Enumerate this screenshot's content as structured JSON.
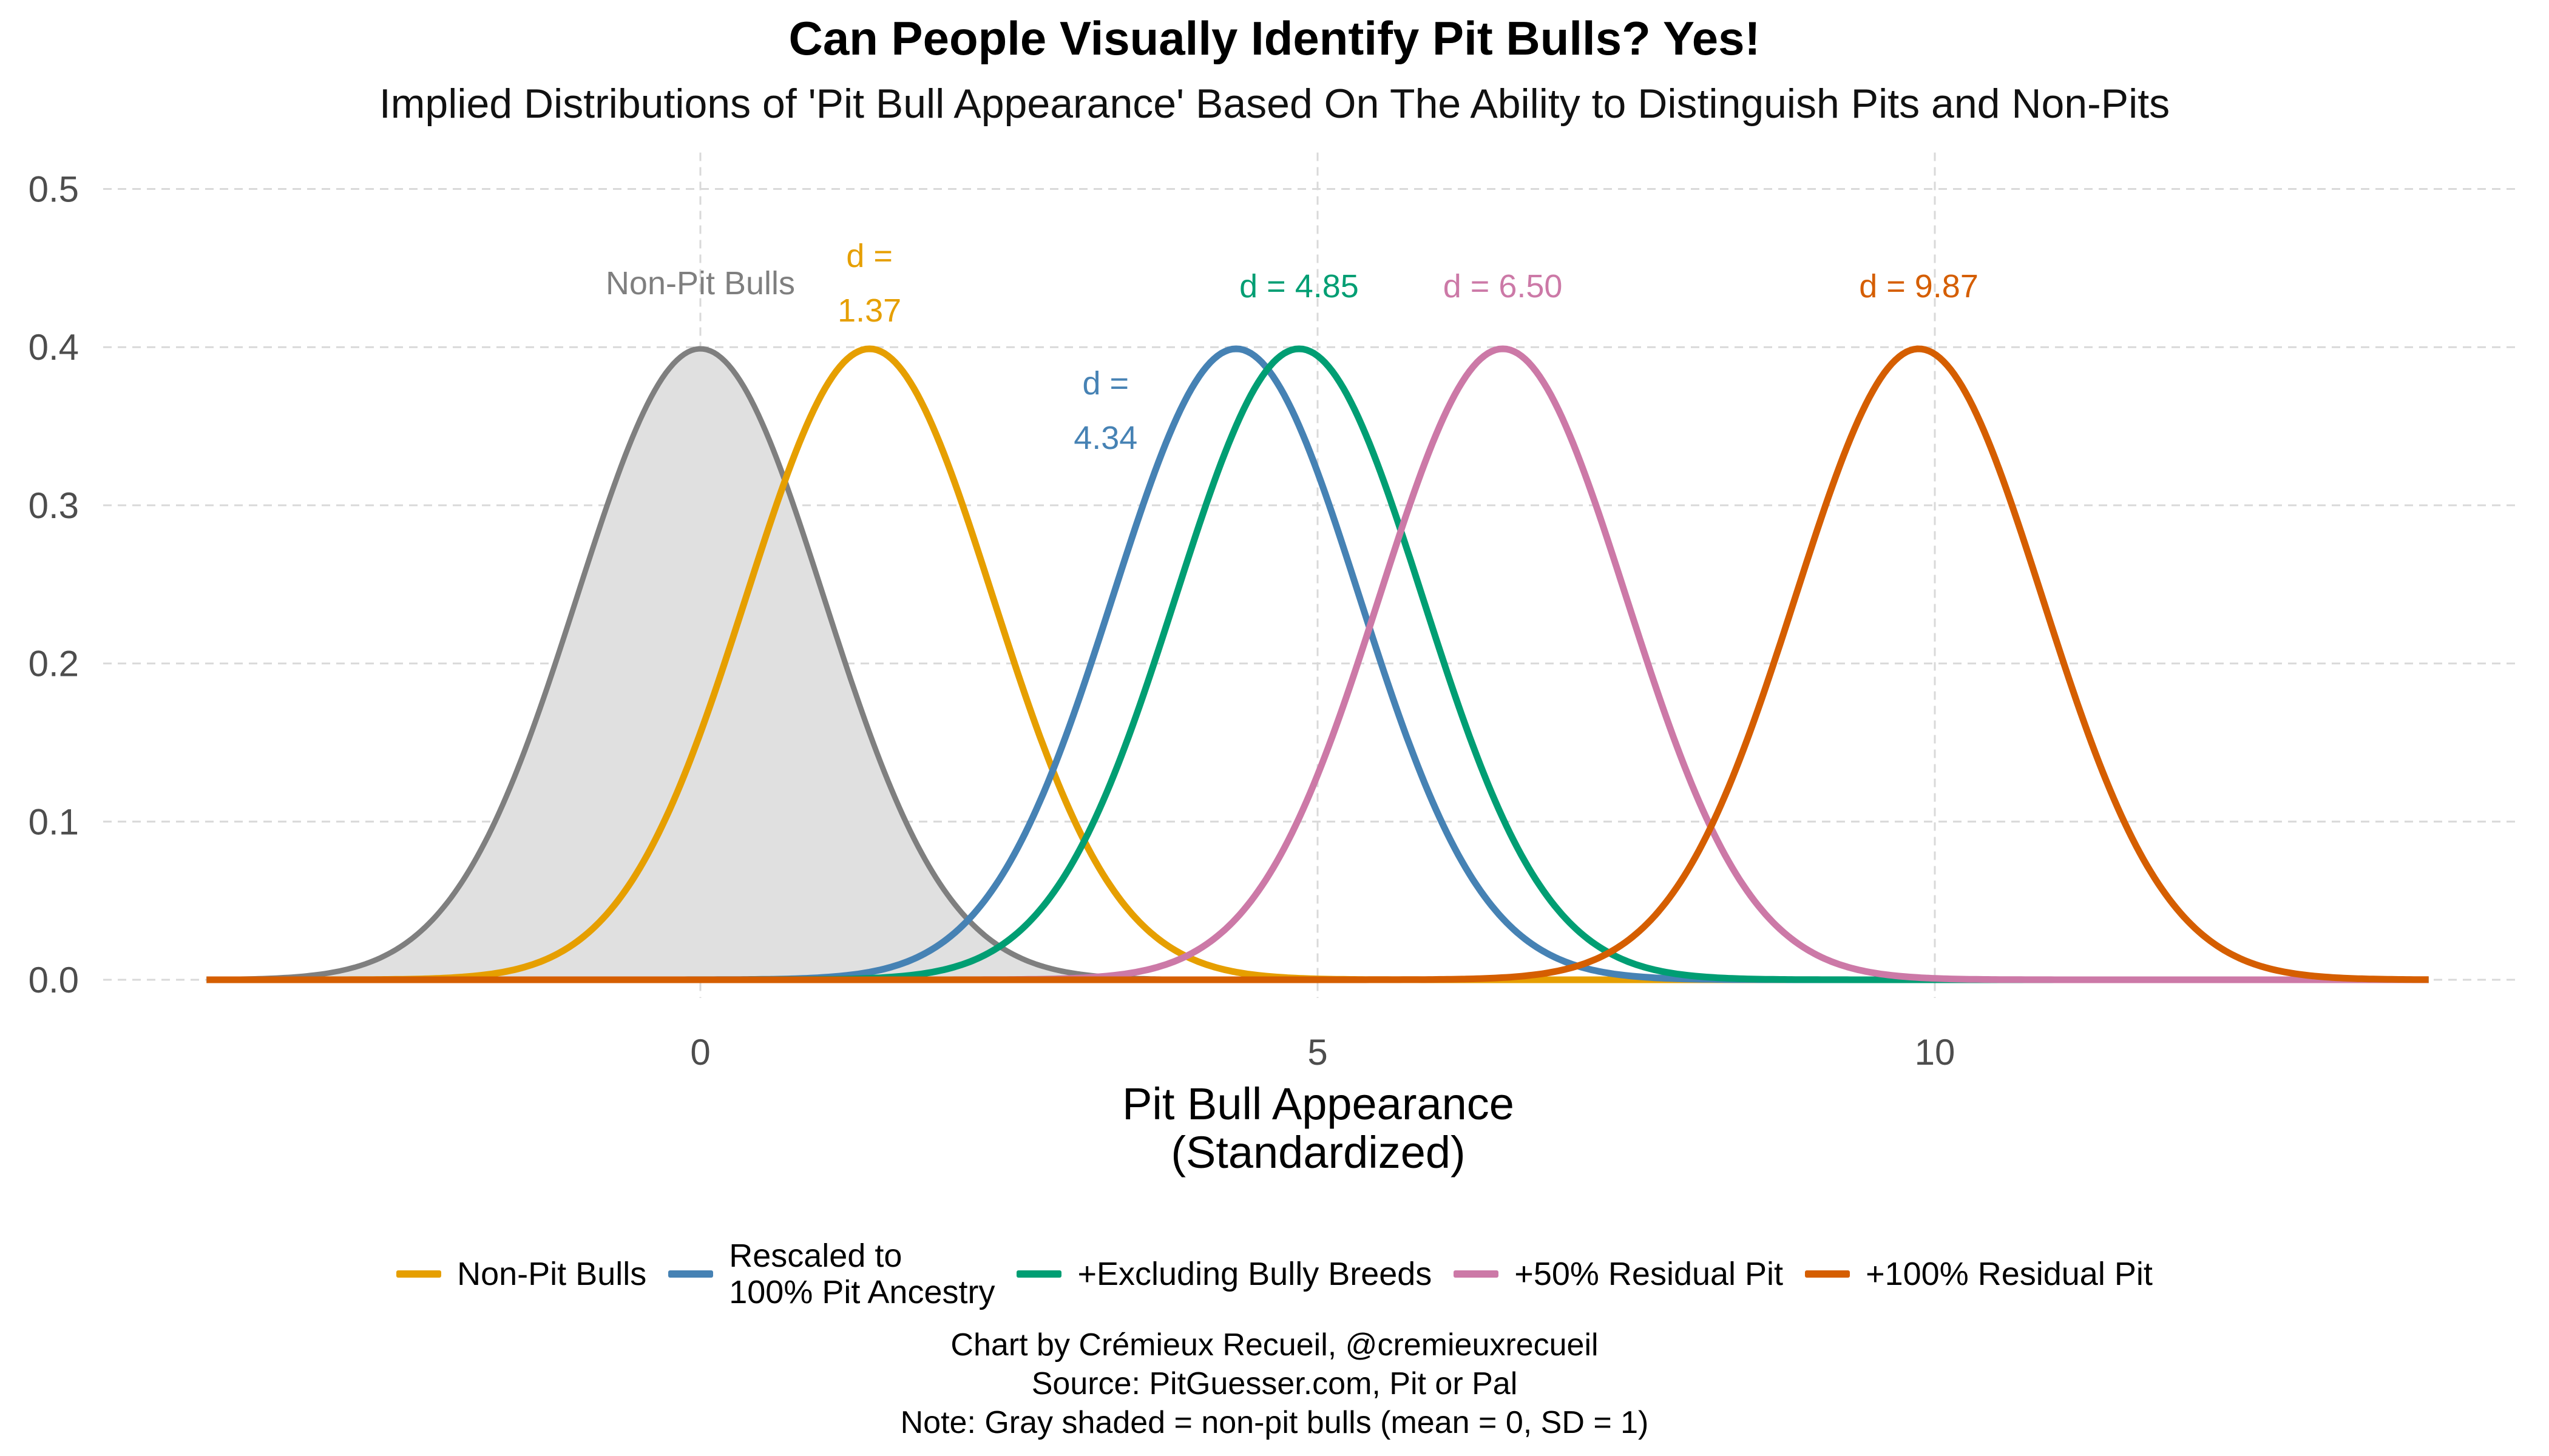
{
  "chart_data": {
    "type": "line",
    "title": "Can People Visually Identify Pit Bulls? Yes!",
    "subtitle": "Implied Distributions of 'Pit Bull Appearance' Based On The Ability to Distinguish Pits and Non-Pits",
    "xlabel": "Pit Bull Appearance\n(Standardized)",
    "xlabel_lines": [
      "Pit Bull Appearance",
      "(Standardized)"
    ],
    "ylabel": "",
    "xlim": [
      -4,
      14
    ],
    "ylim": [
      0,
      0.5
    ],
    "x_ticks": [
      0,
      5,
      10
    ],
    "y_ticks": [
      0.0,
      0.1,
      0.2,
      0.3,
      0.4,
      0.5
    ],
    "y_tick_labels": [
      "0.0",
      "0.1",
      "0.2",
      "0.3",
      "0.4",
      "0.5"
    ],
    "grid": true,
    "distribution": "normal",
    "sd": 1,
    "reference": {
      "name": "Non-Pit Bulls",
      "mean": 0,
      "sd": 1,
      "shaded": true,
      "fill": "#e0e0e0",
      "color": "#7f7f7f",
      "label": "Non-Pit Bulls"
    },
    "series": [
      {
        "name": "Non-Pit Bulls",
        "mean": 1.37,
        "color": "#E69F00",
        "annotation": [
          "d =",
          "1.37"
        ]
      },
      {
        "name": "Rescaled to\n100% Pit Ancestry",
        "legend_lines": [
          "Rescaled to",
          "100% Pit Ancestry"
        ],
        "mean": 4.34,
        "color": "#4682B4",
        "annotation": [
          "d =",
          "4.34"
        ]
      },
      {
        "name": "+Excluding Bully Breeds",
        "mean": 4.85,
        "color": "#009E73",
        "annotation": [
          "d = 4.85"
        ]
      },
      {
        "name": "+50% Residual Pit",
        "mean": 6.5,
        "color": "#CC79A7",
        "annotation": [
          "d = 6.50"
        ]
      },
      {
        "name": "+100% Residual Pit",
        "mean": 9.87,
        "color": "#D55E00",
        "annotation": [
          "d = 9.87"
        ]
      }
    ],
    "legend_position": "bottom",
    "caption": [
      "Chart by Crémieux Recueil, @cremieuxrecueil",
      "Source: PitGuesser.com, Pit or Pal",
      "Note: Gray shaded = non-pit bulls (mean = 0, SD = 1)"
    ]
  }
}
